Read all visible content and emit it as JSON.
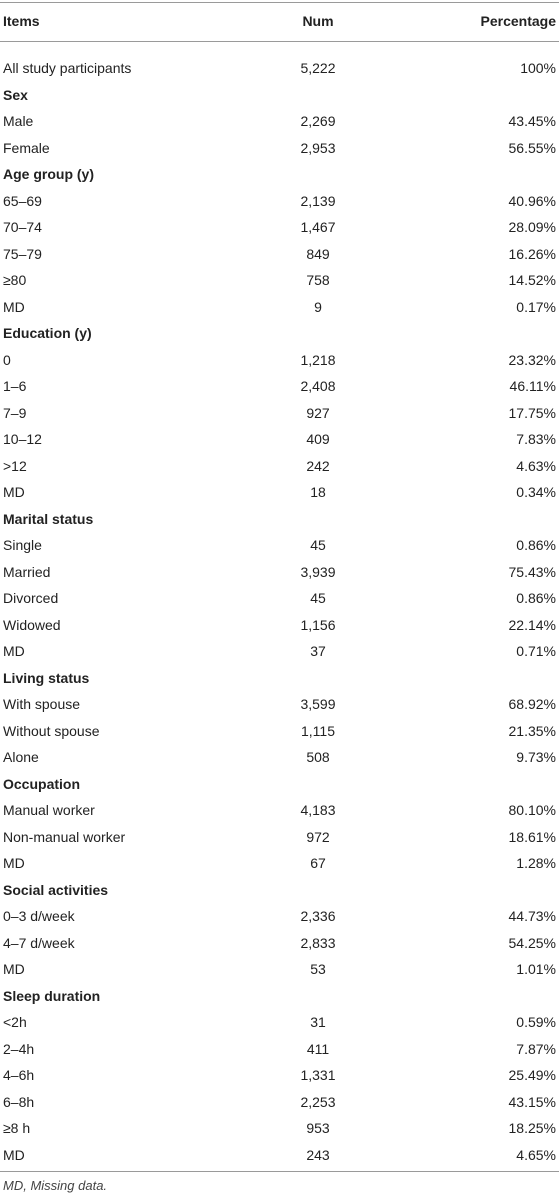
{
  "table": {
    "header": [
      "Items",
      "Num",
      "Percentage"
    ],
    "rows": [
      [
        "All study participants",
        "5,222",
        "100%"
      ],
      [
        "Sex"
      ],
      [
        "Male",
        "2,269",
        "43.45%"
      ],
      [
        "Female",
        "2,953",
        "56.55%"
      ],
      [
        "Age group (y)"
      ],
      [
        "65–69",
        "2,139",
        "40.96%"
      ],
      [
        "70–74",
        "1,467",
        "28.09%"
      ],
      [
        "75–79",
        "849",
        "16.26%"
      ],
      [
        "≥80",
        "758",
        "14.52%"
      ],
      [
        "MD",
        "9",
        "0.17%"
      ],
      [
        "Education (y)"
      ],
      [
        "0",
        "1,218",
        "23.32%"
      ],
      [
        "1–6",
        "2,408",
        "46.11%"
      ],
      [
        "7–9",
        "927",
        "17.75%"
      ],
      [
        "10–12",
        "409",
        "7.83%"
      ],
      [
        ">12",
        "242",
        "4.63%"
      ],
      [
        "MD",
        "18",
        "0.34%"
      ],
      [
        "Marital status"
      ],
      [
        "Single",
        "45",
        "0.86%"
      ],
      [
        "Married",
        "3,939",
        "75.43%"
      ],
      [
        "Divorced",
        "45",
        "0.86%"
      ],
      [
        "Widowed",
        "1,156",
        "22.14%"
      ],
      [
        "MD",
        "37",
        "0.71%"
      ],
      [
        "Living status"
      ],
      [
        "With spouse",
        "3,599",
        "68.92%"
      ],
      [
        "Without spouse",
        "1,115",
        "21.35%"
      ],
      [
        "Alone",
        "508",
        "9.73%"
      ],
      [
        "Occupation"
      ],
      [
        "Manual worker",
        "4,183",
        "80.10%"
      ],
      [
        "Non-manual worker",
        "972",
        "18.61%"
      ],
      [
        "MD",
        "67",
        "1.28%"
      ],
      [
        "Social activities"
      ],
      [
        "0–3 d/week",
        "2,336",
        "44.73%"
      ],
      [
        "4–7 d/week",
        "2,833",
        "54.25%"
      ],
      [
        "MD",
        "53",
        "1.01%"
      ],
      [
        "Sleep duration"
      ],
      [
        "<2h",
        "31",
        "0.59%"
      ],
      [
        "2–4h",
        "411",
        "7.87%"
      ],
      [
        "4–6h",
        "1,331",
        "25.49%"
      ],
      [
        "6–8h",
        "2,253",
        "43.15%"
      ],
      [
        "≥8 h",
        "953",
        "18.25%"
      ],
      [
        "MD",
        "243",
        "4.65%"
      ]
    ],
    "footnote": "MD, Missing data."
  }
}
